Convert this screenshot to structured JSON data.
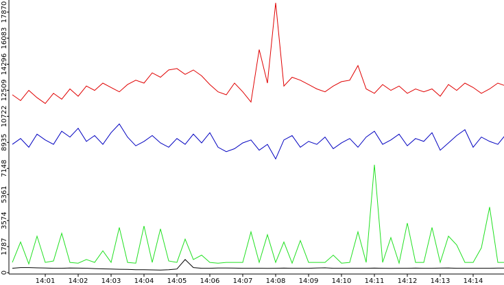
{
  "chart_data": {
    "type": "line",
    "x": [
      0,
      0.25,
      0.5,
      0.75,
      1,
      1.25,
      1.5,
      1.75,
      2,
      2.25,
      2.5,
      2.75,
      3,
      3.25,
      3.5,
      3.75,
      4,
      4.25,
      4.5,
      4.75,
      5,
      5.25,
      5.5,
      5.75,
      6,
      6.25,
      6.5,
      6.75,
      7,
      7.25,
      7.5,
      7.75,
      8,
      8.25,
      8.5,
      8.75,
      9,
      9.25,
      9.5,
      9.75,
      10,
      10.25,
      10.5,
      10.75,
      11,
      11.25,
      11.5,
      11.75,
      12,
      12.25,
      12.5,
      12.75,
      13,
      13.25,
      13.5,
      13.75,
      14,
      14.25,
      14.5,
      14.75,
      15
    ],
    "xlim": [
      0,
      15
    ],
    "xticks": [
      {
        "value": 1,
        "label": "14:01"
      },
      {
        "value": 2,
        "label": "14:02"
      },
      {
        "value": 3,
        "label": "14:03"
      },
      {
        "value": 4,
        "label": "14:04"
      },
      {
        "value": 5,
        "label": "14:05"
      },
      {
        "value": 6,
        "label": "14:06"
      },
      {
        "value": 7,
        "label": "14:07"
      },
      {
        "value": 8,
        "label": "14:08"
      },
      {
        "value": 9,
        "label": "14:09"
      },
      {
        "value": 10,
        "label": "14:10"
      },
      {
        "value": 11,
        "label": "14:11"
      },
      {
        "value": 12,
        "label": "14:12"
      },
      {
        "value": 13,
        "label": "14:13"
      },
      {
        "value": 14,
        "label": "14:14"
      }
    ],
    "ylim": [
      0,
      18700
    ],
    "yticks": [
      0,
      1787,
      3574,
      5361,
      7148,
      8935,
      10722,
      12509,
      14296,
      16083,
      17870
    ],
    "series": [
      {
        "color": "#e00000",
        "values": [
          12200,
          11800,
          12500,
          12000,
          11600,
          12300,
          11900,
          12600,
          12100,
          12800,
          12500,
          13000,
          12700,
          12400,
          12900,
          13200,
          13000,
          13700,
          13400,
          13900,
          14000,
          13600,
          13900,
          13500,
          12900,
          12400,
          12200,
          13000,
          12400,
          11700,
          15300,
          13000,
          18500,
          12800,
          13400,
          13200,
          12900,
          12600,
          12400,
          12800,
          13100,
          13200,
          14200,
          12600,
          12300,
          12900,
          12500,
          12800,
          12300,
          12600,
          12400,
          12600,
          12100,
          12900,
          12500,
          13000,
          12700,
          12300,
          12600,
          13000,
          12800
        ]
      },
      {
        "color": "#0000c0",
        "values": [
          8800,
          9200,
          8600,
          9500,
          9100,
          8800,
          9700,
          9300,
          9900,
          9000,
          9400,
          8800,
          9600,
          10200,
          9300,
          8700,
          9000,
          9400,
          8900,
          8600,
          9200,
          8800,
          9500,
          8900,
          9600,
          8600,
          8300,
          8500,
          8900,
          9100,
          8400,
          8800,
          7800,
          9100,
          9400,
          8600,
          9000,
          8800,
          9300,
          8500,
          8900,
          9200,
          8600,
          9300,
          9700,
          8800,
          9100,
          9500,
          8700,
          9200,
          9000,
          9600,
          8400,
          8900,
          9400,
          9800,
          8600,
          9300,
          9000,
          8800,
          9500
        ]
      },
      {
        "color": "#20e020",
        "values": [
          700,
          2100,
          600,
          2500,
          700,
          800,
          2700,
          700,
          650,
          900,
          700,
          1500,
          700,
          3100,
          700,
          650,
          3200,
          700,
          3000,
          800,
          700,
          2300,
          900,
          1200,
          700,
          650,
          700,
          700,
          700,
          2800,
          700,
          2600,
          700,
          2100,
          650,
          2200,
          700,
          700,
          700,
          1200,
          650,
          700,
          2800,
          700,
          7400,
          700,
          2400,
          650,
          3400,
          700,
          700,
          3100,
          700,
          2500,
          1900,
          700,
          700,
          1700,
          4500,
          700,
          700
        ]
      },
      {
        "color": "#000000",
        "values": [
          300,
          350,
          350,
          330,
          320,
          300,
          300,
          320,
          310,
          300,
          280,
          260,
          250,
          230,
          220,
          200,
          200,
          190,
          180,
          200,
          250,
          900,
          350,
          300,
          300,
          320,
          320,
          310,
          300,
          300,
          300,
          290,
          300,
          310,
          300,
          300,
          300,
          320,
          330,
          300,
          300,
          300,
          300,
          300,
          310,
          300,
          290,
          300,
          300,
          310,
          300,
          300,
          310,
          320,
          300,
          300,
          300,
          300,
          300,
          310,
          310
        ]
      }
    ]
  }
}
